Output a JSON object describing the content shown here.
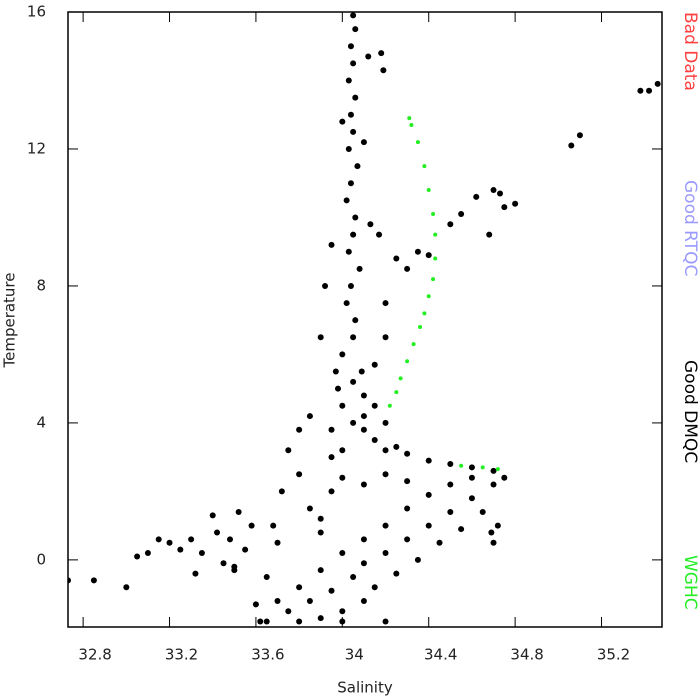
{
  "chart_data": {
    "type": "scatter",
    "x_label": "Salinity",
    "y_label": "Temperature",
    "xlim": [
      32.73,
      35.48
    ],
    "ylim": [
      -1.96,
      16
    ],
    "xticks": [
      32.8,
      33.2,
      33.6,
      34.0,
      34.4,
      34.8,
      35.2
    ],
    "yticks": [
      0,
      4,
      8,
      12,
      16
    ],
    "legend": "right",
    "series": [
      {
        "name": "Bad Data",
        "color": "#ff4040",
        "x": [],
        "values": []
      },
      {
        "name": "Good RTQC",
        "color": "#9999ff",
        "x": [],
        "values": []
      },
      {
        "name": "Good DMQC",
        "color": "#000000",
        "x": [
          34.05,
          34.06,
          34.04,
          34.05,
          34.03,
          34.06,
          34.04,
          34.05,
          34.03,
          34.07,
          34.04,
          34.02,
          34.06,
          34.05,
          34.03,
          34.08,
          34.04,
          34.02,
          34.06,
          34.05,
          34.0,
          34.09,
          33.98,
          34.1,
          34.12,
          34.0,
          34.1,
          34.13,
          33.95,
          34.17,
          33.92,
          34.2,
          34.25,
          34.3,
          34.2,
          33.9,
          34.15,
          34.0,
          34.05,
          34.1,
          34.15,
          34.2,
          34.25,
          33.95,
          34.0,
          34.3,
          34.4,
          34.5,
          34.6,
          34.7,
          34.1,
          34.2,
          34.15,
          33.97,
          34.05,
          33.65,
          33.75,
          33.8,
          33.85,
          33.9,
          33.95,
          34.0,
          34.05,
          34.1,
          34.1,
          34.15,
          34.2,
          34.25,
          34.3,
          34.35,
          34.4,
          34.45,
          34.5,
          34.55,
          34.6,
          34.65,
          34.7,
          34.75,
          34.72,
          34.7,
          34.69,
          34.6,
          34.5,
          34.4,
          34.3,
          34.2,
          34.1,
          34.0,
          33.9,
          33.8,
          33.7,
          33.65,
          33.7,
          33.6,
          33.62,
          34.0,
          34.2,
          33.9,
          33.85,
          33.8,
          33.75,
          33.8,
          33.85,
          33.9,
          33.95,
          34.0,
          34.1,
          34.2,
          34.3,
          33.95,
          33.72,
          33.68,
          33.55,
          33.58,
          33.5,
          32.73,
          32.85,
          33.0,
          33.05,
          33.1,
          33.15,
          33.2,
          33.25,
          33.3,
          33.32,
          33.35,
          33.4,
          33.42,
          33.45,
          33.48,
          33.5,
          33.52,
          34.35,
          34.4,
          34.5,
          34.55,
          34.62,
          34.7,
          34.75,
          34.8,
          34.68,
          34.73,
          35.06,
          35.1,
          35.38,
          35.42,
          35.46,
          34.18,
          34.19
        ],
        "values": [
          15.9,
          15.5,
          15.0,
          14.5,
          14.0,
          13.5,
          13.0,
          12.5,
          12.0,
          11.5,
          11.0,
          10.5,
          10.0,
          9.5,
          9.0,
          8.5,
          8.0,
          7.5,
          7.0,
          6.5,
          6.0,
          5.5,
          5.0,
          4.8,
          14.7,
          12.8,
          12.2,
          9.8,
          9.2,
          9.5,
          8.0,
          7.5,
          8.8,
          8.5,
          6.5,
          6.5,
          5.7,
          4.5,
          4.0,
          3.8,
          3.5,
          3.2,
          3.3,
          3.8,
          3.2,
          3.1,
          2.9,
          2.8,
          2.7,
          2.6,
          4.2,
          4.0,
          4.5,
          5.5,
          5.2,
          -1.8,
          -1.5,
          -1.8,
          -1.2,
          -1.7,
          -0.9,
          -1.5,
          -0.5,
          -1.2,
          -0.1,
          -0.8,
          0.2,
          -0.4,
          0.6,
          0.0,
          1.0,
          0.5,
          1.4,
          0.9,
          1.8,
          1.4,
          2.2,
          2.4,
          1.0,
          0.5,
          0.8,
          2.4,
          2.2,
          1.9,
          1.5,
          1.0,
          0.6,
          0.2,
          -0.3,
          -0.8,
          -1.2,
          -0.5,
          0.5,
          -1.3,
          -1.8,
          -1.8,
          -1.8,
          0.8,
          1.5,
          2.5,
          3.2,
          3.8,
          4.2,
          1.2,
          2.0,
          2.4,
          2.2,
          2.5,
          2.3,
          3.0,
          2.0,
          1.0,
          0.3,
          1.0,
          -0.3,
          -0.6,
          -0.6,
          -0.8,
          0.1,
          0.2,
          0.6,
          0.5,
          0.3,
          0.6,
          -0.4,
          0.2,
          1.3,
          0.8,
          -0.1,
          0.6,
          -0.2,
          1.4,
          9.0,
          8.9,
          9.8,
          10.1,
          10.6,
          10.8,
          10.3,
          10.4,
          9.5,
          10.7,
          12.1,
          12.4,
          13.7,
          13.7,
          13.9,
          14.8,
          14.3
        ]
      },
      {
        "name": "WGHC",
        "color": "#22ee22",
        "x": [
          34.31,
          34.32,
          34.35,
          34.38,
          34.4,
          34.42,
          34.43,
          34.43,
          34.42,
          34.4,
          34.38,
          34.36,
          34.33,
          34.3,
          34.27,
          34.25,
          34.22,
          34.55,
          34.65,
          34.72
        ],
        "values": [
          12.9,
          12.7,
          12.2,
          11.5,
          10.8,
          10.1,
          9.5,
          8.8,
          8.2,
          7.7,
          7.2,
          6.8,
          6.3,
          5.8,
          5.3,
          4.9,
          4.5,
          2.75,
          2.7,
          2.65
        ]
      }
    ]
  }
}
